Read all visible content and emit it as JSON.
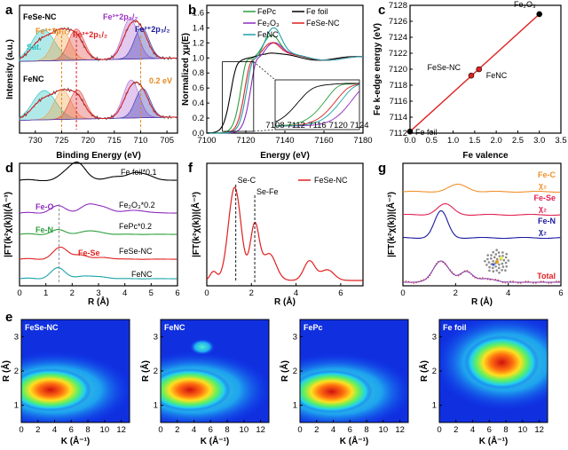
{
  "chart_data": [
    {
      "panel": "a",
      "type": "line",
      "xlabel": "Binding Energy (eV)",
      "ylabel": "Intensity (a.u.)",
      "xlim": [
        733,
        703
      ],
      "xticks": [
        730,
        725,
        720,
        715,
        710,
        705
      ],
      "samples": [
        "FeSe-NC",
        "FeNC"
      ],
      "annotations": [
        {
          "text": "Fe³⁺2p₁/₂",
          "color": "#e8871e"
        },
        {
          "text": "Fe²⁺2p₁/₂",
          "color": "#e02020"
        },
        {
          "text": "Fe³⁺2p₃/₂",
          "color": "#9b30c0"
        },
        {
          "text": "Fe²⁺2p₃/₂",
          "color": "#1a1a9a"
        },
        {
          "text": "Sat.",
          "color": "#20c0c0"
        },
        {
          "text": "0.2 eV",
          "color": "#e8871e"
        }
      ],
      "peak_centers_eV": {
        "Fe3+2p1/2": 725.0,
        "Fe2+2p1/2": 722.2,
        "Fe3+2p3/2": 712.0,
        "Fe2+2p3/2": 709.8,
        "sat": 728.5
      }
    },
    {
      "panel": "b",
      "type": "line",
      "xlabel": "Energy (eV)",
      "ylabel": "Normalized χμ(E)",
      "xlim": [
        7100,
        7180
      ],
      "ylim": [
        0.0,
        1.7
      ],
      "xticks": [
        7100,
        7120,
        7140,
        7160,
        7180
      ],
      "yticks": [
        0.0,
        0.2,
        0.4,
        0.6,
        0.8,
        1.0,
        1.2,
        1.4,
        1.6
      ],
      "series": [
        {
          "name": "FePc",
          "color": "#2e9e3e"
        },
        {
          "name": "Fe foil",
          "color": "#000000"
        },
        {
          "name": "Fe₂O₃",
          "color": "#8e2cc0"
        },
        {
          "name": "FeSe-NC",
          "color": "#e02020"
        },
        {
          "name": "FeNC",
          "color": "#1aa3a8"
        }
      ],
      "inset": {
        "xlim": [
          7108,
          7124
        ],
        "xticks": [
          7108,
          7112,
          7116,
          7120,
          7124
        ]
      }
    },
    {
      "panel": "c",
      "type": "scatter",
      "xlabel": "Fe valence",
      "ylabel": "Fe k-edge energy (eV)",
      "xlim": [
        0.0,
        3.5
      ],
      "ylim": [
        7112,
        7128
      ],
      "xticks": [
        0.0,
        0.5,
        1.0,
        1.5,
        2.0,
        2.5,
        3.0,
        3.5
      ],
      "yticks": [
        7112,
        7114,
        7116,
        7118,
        7120,
        7122,
        7124,
        7126,
        7128
      ],
      "points": [
        {
          "label": "Fe foil",
          "x": 0.0,
          "y": 7112.2
        },
        {
          "label": "FeSe-NC",
          "x": 1.42,
          "y": 7119.2
        },
        {
          "label": "FeNC",
          "x": 1.6,
          "y": 7120.0
        },
        {
          "label": "Fe₂O₃",
          "x": 3.0,
          "y": 7126.9
        }
      ]
    },
    {
      "panel": "d",
      "type": "line",
      "xlabel": "R (Å)",
      "ylabel": "|FT(k²χ(k))|(Å⁻³)",
      "xlim": [
        0,
        6
      ],
      "xticks": [
        0,
        1,
        2,
        3,
        4,
        5,
        6
      ],
      "series": [
        {
          "name": "Fe foil*0.1",
          "color": "#000000"
        },
        {
          "name": "Fe₂O₃*0.2",
          "color": "#8e2cc0"
        },
        {
          "name": "FePc*0.2",
          "color": "#2e9e3e"
        },
        {
          "name": "FeSe-NC",
          "color": "#e02020"
        },
        {
          "name": "FeNC",
          "color": "#1aa3a8"
        }
      ],
      "annotations": [
        {
          "text": "Fe-O",
          "color": "#8e2cc0"
        },
        {
          "text": "Fe-N",
          "color": "#2e9e3e"
        },
        {
          "text": "Fe-Se",
          "color": "#e02020"
        }
      ]
    },
    {
      "panel": "f",
      "type": "line",
      "xlabel": "R (Å)",
      "ylabel": "|FT(k²χ(k))|(Å⁻³)",
      "xlim": [
        0,
        7
      ],
      "xticks": [
        0,
        2,
        4,
        6
      ],
      "series": [
        {
          "name": "FeSe-NC",
          "color": "#e02020"
        }
      ],
      "annotations": [
        {
          "text": "Se-C",
          "x": 1.3
        },
        {
          "text": "Se-Fe",
          "x": 2.15
        }
      ]
    },
    {
      "panel": "g",
      "type": "line",
      "xlabel": "R (Å)",
      "ylabel": "|FT(k²χ(k))|(Å⁻³)",
      "xlim": [
        0,
        6
      ],
      "xticks": [
        0,
        2,
        4,
        6
      ],
      "series": [
        {
          "name": "Fe-C",
          "sub": "χ₂",
          "color": "#f0902a"
        },
        {
          "name": "Fe-Se",
          "sub": "χ₂",
          "color": "#e02050"
        },
        {
          "name": "Fe-N",
          "sub": "χ₂",
          "color": "#1a1aa0"
        },
        {
          "name": "Total",
          "color": "#e02020"
        }
      ]
    },
    {
      "panel": "e",
      "type": "heatmap",
      "xlabel": "K (Å⁻¹)",
      "ylabel": "R (Å)",
      "xlim": [
        0,
        13
      ],
      "ylim": [
        0.5,
        3.5
      ],
      "xticks": [
        0,
        2,
        4,
        6,
        8,
        10,
        12
      ],
      "yticks": [
        1,
        2,
        3
      ],
      "maps": [
        {
          "title": "FeSe-NC",
          "hotspots": [
            {
              "k": 3.5,
              "r": 1.45
            }
          ]
        },
        {
          "title": "FeNC",
          "hotspots": [
            {
              "k": 3.5,
              "r": 1.45
            }
          ]
        },
        {
          "title": "FePc",
          "hotspots": [
            {
              "k": 3.8,
              "r": 1.4
            }
          ]
        },
        {
          "title": "Fe foil",
          "hotspots": [
            {
              "k": 7.5,
              "r": 2.25
            }
          ]
        }
      ]
    }
  ],
  "labels": {
    "a": "a",
    "b": "b",
    "c": "c",
    "d": "d",
    "e": "e",
    "f": "f",
    "g": "g"
  }
}
